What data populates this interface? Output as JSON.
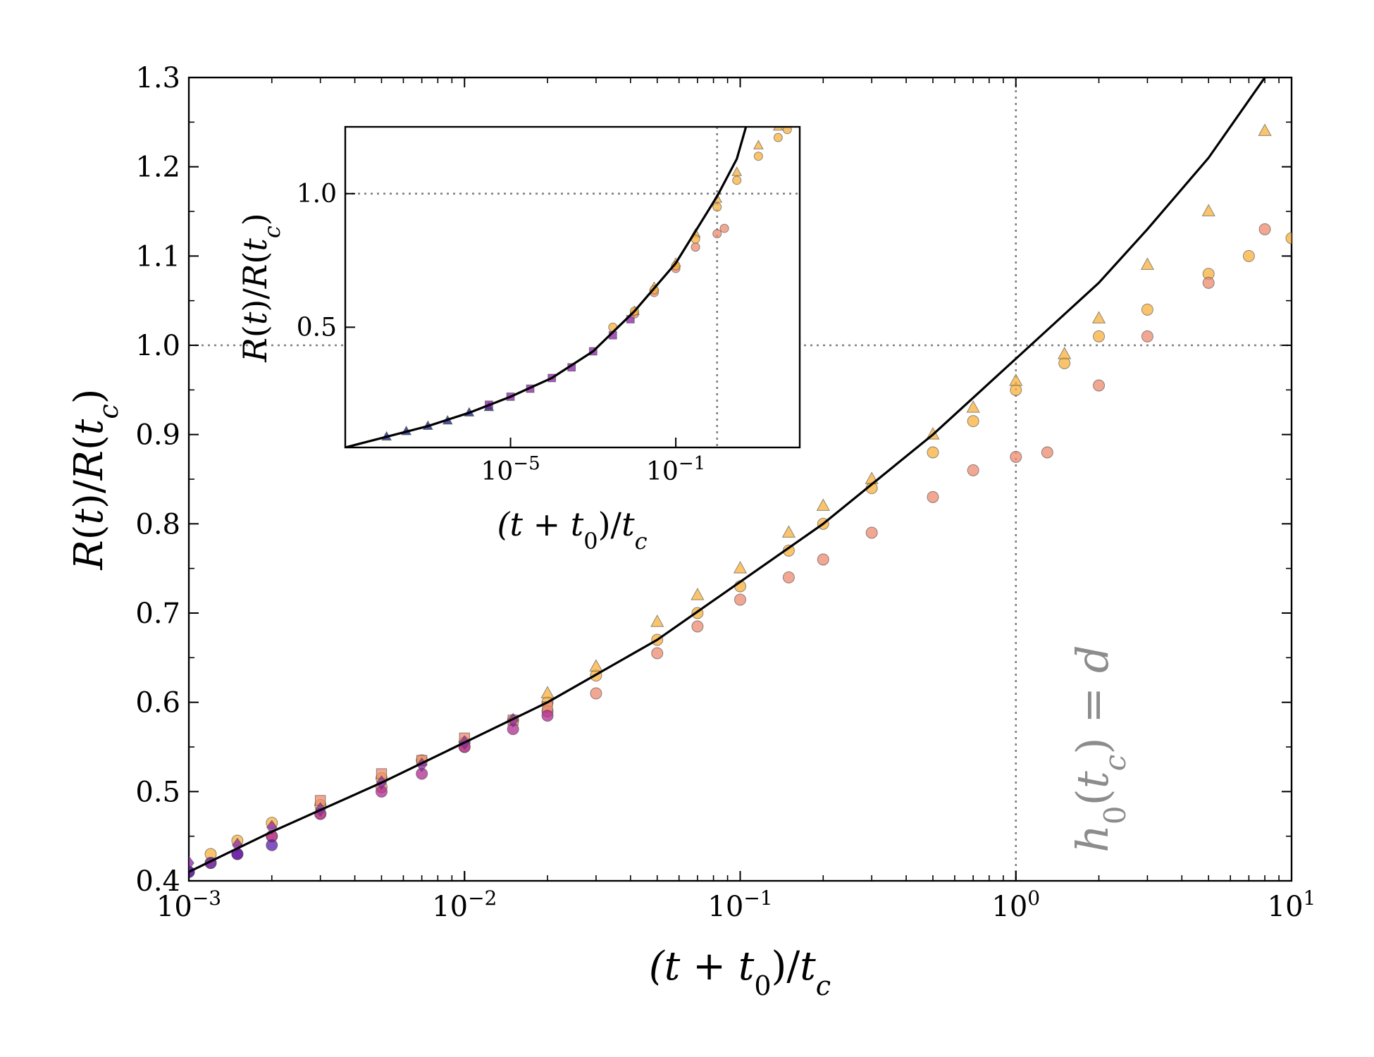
{
  "chart_data": [
    {
      "type": "scatter",
      "name": "main",
      "xscale": "log",
      "xlim": [
        0.001,
        10
      ],
      "ylim": [
        0.4,
        1.3
      ],
      "xticks": [
        {
          "value": 0.001,
          "base": "10",
          "exp": "−3"
        },
        {
          "value": 0.01,
          "base": "10",
          "exp": "−2"
        },
        {
          "value": 0.1,
          "base": "10",
          "exp": "−1"
        },
        {
          "value": 1,
          "base": "10",
          "exp": "0"
        },
        {
          "value": 10,
          "base": "10",
          "exp": "1"
        }
      ],
      "yticks": [
        "0.4",
        "0.5",
        "0.6",
        "0.7",
        "0.8",
        "0.9",
        "1.0",
        "1.1",
        "1.2",
        "1.3"
      ],
      "xlabel": "(t + t0)/tc",
      "ylabel": "R(t)/R(tc)",
      "reference_lines": {
        "vertical_x": 1,
        "horizontal_y": 1.0
      },
      "annotation": "h0(tc) = d",
      "grid": false,
      "model_curve": {
        "x": [
          0.001,
          0.002,
          0.005,
          0.01,
          0.02,
          0.05,
          0.1,
          0.2,
          0.5,
          1,
          2,
          3,
          5,
          8
        ],
        "y": [
          0.41,
          0.455,
          0.51,
          0.555,
          0.6,
          0.67,
          0.735,
          0.8,
          0.9,
          0.985,
          1.07,
          1.13,
          1.21,
          1.3
        ]
      },
      "series": [
        {
          "name": "orange circles",
          "marker": "circle",
          "color": "#f8b03c",
          "x": [
            0.0012,
            0.0015,
            0.002,
            0.003,
            0.005,
            0.007,
            0.01,
            0.015,
            0.02,
            0.03,
            0.05,
            0.07,
            0.1,
            0.15,
            0.2,
            0.3,
            0.5,
            0.7,
            1,
            1.5,
            2,
            3,
            5,
            7,
            10
          ],
          "y": [
            0.43,
            0.445,
            0.465,
            0.485,
            0.515,
            0.535,
            0.555,
            0.58,
            0.6,
            0.63,
            0.67,
            0.7,
            0.73,
            0.77,
            0.8,
            0.84,
            0.88,
            0.915,
            0.95,
            0.98,
            1.01,
            1.04,
            1.08,
            1.1,
            1.12
          ]
        },
        {
          "name": "orange triangles",
          "marker": "triangle",
          "color": "#f8b03c",
          "x": [
            0.02,
            0.03,
            0.05,
            0.07,
            0.1,
            0.15,
            0.2,
            0.3,
            0.5,
            0.7,
            1,
            1.5,
            2,
            3,
            5,
            8
          ],
          "y": [
            0.61,
            0.64,
            0.69,
            0.72,
            0.75,
            0.79,
            0.82,
            0.85,
            0.9,
            0.93,
            0.96,
            0.99,
            1.03,
            1.09,
            1.15,
            1.24
          ]
        },
        {
          "name": "salmon circles",
          "marker": "circle",
          "color": "#ee8a6e",
          "x": [
            0.0012,
            0.002,
            0.003,
            0.005,
            0.01,
            0.02,
            0.03,
            0.05,
            0.07,
            0.1,
            0.15,
            0.2,
            0.3,
            0.5,
            0.7,
            1,
            1.3,
            2,
            3,
            5,
            8
          ],
          "y": [
            0.42,
            0.45,
            0.475,
            0.505,
            0.55,
            0.59,
            0.61,
            0.655,
            0.685,
            0.715,
            0.74,
            0.76,
            0.79,
            0.83,
            0.86,
            0.875,
            0.88,
            0.955,
            1.01,
            1.07,
            1.13
          ]
        },
        {
          "name": "salmon squares",
          "marker": "square",
          "color": "#ee8a6e",
          "x": [
            0.003,
            0.005,
            0.007,
            0.01,
            0.015,
            0.02
          ],
          "y": [
            0.49,
            0.52,
            0.535,
            0.56,
            0.58,
            0.595
          ]
        },
        {
          "name": "magenta circles",
          "marker": "circle",
          "color": "#b02a90",
          "x": [
            0.001,
            0.0015,
            0.002,
            0.003,
            0.005,
            0.007,
            0.01,
            0.015,
            0.02
          ],
          "y": [
            0.41,
            0.43,
            0.45,
            0.475,
            0.5,
            0.52,
            0.55,
            0.57,
            0.585
          ]
        },
        {
          "name": "purple diamonds",
          "marker": "diamond",
          "color": "#8a2ba6",
          "x": [
            0.001,
            0.0015,
            0.002,
            0.003,
            0.005,
            0.007,
            0.01,
            0.015
          ],
          "y": [
            0.42,
            0.44,
            0.46,
            0.48,
            0.51,
            0.53,
            0.555,
            0.58
          ]
        },
        {
          "name": "indigo circles",
          "marker": "circle",
          "color": "#5a1aa8",
          "x": [
            0.001,
            0.0012,
            0.0015,
            0.002
          ],
          "y": [
            0.41,
            0.42,
            0.43,
            0.44
          ]
        }
      ]
    },
    {
      "type": "scatter",
      "name": "inset",
      "xscale": "log",
      "xlim": [
        1e-09,
        100
      ],
      "ylim": [
        0.05,
        1.25
      ],
      "xticks": [
        {
          "value": 1e-05,
          "base": "10",
          "exp": "−5"
        },
        {
          "value": 0.1,
          "base": "10",
          "exp": "−1"
        }
      ],
      "yticks": [
        "0.5",
        "1.0"
      ],
      "xlabel": "(t + t0)/tc",
      "ylabel": "R(t)/R(tc)",
      "reference_lines": {
        "vertical_x": 1,
        "horizontal_y": 1.0
      },
      "model_curve": {
        "x": [
          1e-09,
          1e-08,
          1e-07,
          1e-06,
          1e-05,
          0.0001,
          0.001,
          0.01,
          0.1,
          1,
          3,
          5
        ],
        "y": [
          0.05,
          0.09,
          0.13,
          0.18,
          0.24,
          0.31,
          0.41,
          0.56,
          0.74,
          0.99,
          1.13,
          1.25
        ]
      },
      "series": [
        {
          "name": "navy triangles",
          "marker": "triangle",
          "color": "#0d1a7a",
          "x": [
            1e-08,
            3e-08,
            1e-07,
            3e-07,
            1e-06,
            3e-06
          ],
          "y": [
            0.09,
            0.11,
            0.13,
            0.15,
            0.18,
            0.2
          ]
        },
        {
          "name": "purple squares",
          "marker": "square",
          "color": "#8a1fa6",
          "x": [
            3e-06,
            1e-05,
            3e-05,
            0.0001,
            0.0003,
            0.001,
            0.003,
            0.008
          ],
          "y": [
            0.21,
            0.24,
            0.27,
            0.31,
            0.35,
            0.41,
            0.47,
            0.53
          ]
        },
        {
          "name": "salmon circles",
          "marker": "circle",
          "color": "#ee8a6e",
          "x": [
            0.01,
            0.03,
            0.1,
            0.3,
            1,
            1.5
          ],
          "y": [
            0.55,
            0.63,
            0.72,
            0.8,
            0.85,
            0.87
          ]
        },
        {
          "name": "orange triangles",
          "marker": "triangle",
          "color": "#f8b03c",
          "x": [
            0.01,
            0.03,
            0.1,
            0.3,
            1,
            3,
            10,
            30
          ],
          "y": [
            0.56,
            0.65,
            0.74,
            0.85,
            0.98,
            1.08,
            1.18,
            1.25
          ]
        },
        {
          "name": "orange circles",
          "marker": "circle",
          "color": "#f8b03c",
          "x": [
            0.003,
            0.01,
            0.03,
            0.1,
            0.3,
            1,
            3,
            10,
            30,
            50
          ],
          "y": [
            0.5,
            0.56,
            0.64,
            0.73,
            0.83,
            0.95,
            1.05,
            1.14,
            1.21,
            1.24
          ]
        }
      ]
    }
  ]
}
